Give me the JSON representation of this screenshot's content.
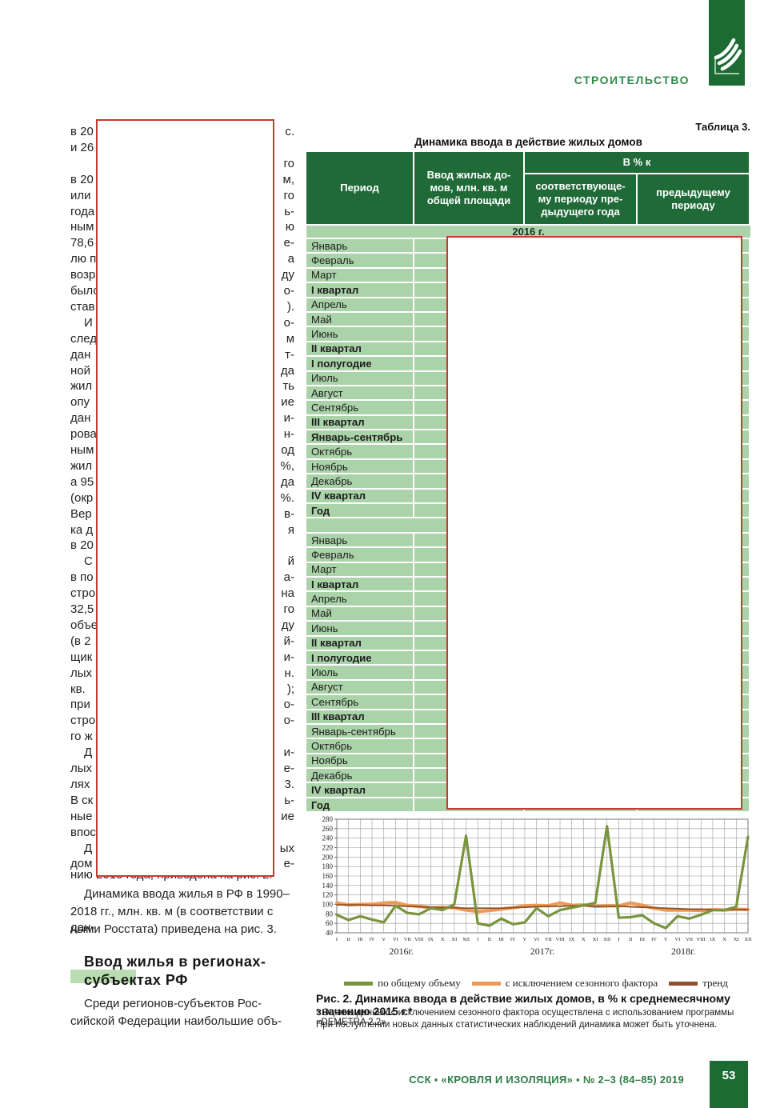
{
  "header": {
    "section_label": "СТРОИТЕЛЬСТВО",
    "logo_icon": "leaf-fan-logo",
    "brand_green": "#1b6b33"
  },
  "left_column": {
    "fragments": [
      {
        "l": "в 20",
        "r": "с.",
        "indent": false
      },
      {
        "l": "и 26",
        "r": "",
        "indent": false
      },
      {
        "l": "",
        "r": "го",
        "indent": true
      },
      {
        "l": "в 20",
        "r": "м,",
        "indent": false
      },
      {
        "l": "или",
        "r": "го",
        "indent": false
      },
      {
        "l": "года",
        "r": "ь-",
        "indent": false
      },
      {
        "l": "ным",
        "r": "ю",
        "indent": false
      },
      {
        "l": "78,6",
        "r": "е-",
        "indent": false
      },
      {
        "l": "лю п",
        "r": "а",
        "indent": false
      },
      {
        "l": "возр",
        "r": "ду",
        "indent": false
      },
      {
        "l": "было",
        "r": "о-",
        "indent": false
      },
      {
        "l": "став",
        "r": ").",
        "indent": false
      },
      {
        "l": "И",
        "r": "о-",
        "indent": true
      },
      {
        "l": "след",
        "r": "м",
        "indent": false
      },
      {
        "l": "дан",
        "r": "т-",
        "indent": false
      },
      {
        "l": "ной",
        "r": "да",
        "indent": false
      },
      {
        "l": "жил",
        "r": "ть",
        "indent": false
      },
      {
        "l": "опу",
        "r": "ие",
        "indent": false
      },
      {
        "l": "дан",
        "r": "и-",
        "indent": false
      },
      {
        "l": "рова",
        "r": "н-",
        "indent": false
      },
      {
        "l": "ным",
        "r": "од",
        "indent": false
      },
      {
        "l": "жил",
        "r": "%,",
        "indent": false
      },
      {
        "l": "а 95",
        "r": "да",
        "indent": false
      },
      {
        "l": "(окр",
        "r": "%.",
        "indent": false
      },
      {
        "l": "Вер",
        "r": "в-",
        "indent": false
      },
      {
        "l": "ка д",
        "r": "я",
        "indent": false
      },
      {
        "l": "в 20",
        "r": "",
        "indent": false
      },
      {
        "l": "С",
        "r": "й",
        "indent": true
      },
      {
        "l": "в по",
        "r": "а-",
        "indent": false
      },
      {
        "l": "стро",
        "r": "на",
        "indent": false
      },
      {
        "l": "32,5",
        "r": "го",
        "indent": false
      },
      {
        "l": "объе",
        "r": "ду",
        "indent": false
      },
      {
        "l": "(в 2",
        "r": "й-",
        "indent": false
      },
      {
        "l": "щик",
        "r": "и-",
        "indent": false
      },
      {
        "l": "лых",
        "r": "н.",
        "indent": false
      },
      {
        "l": "кв.",
        "r": ");",
        "indent": false
      },
      {
        "l": "при",
        "r": "о-",
        "indent": false
      },
      {
        "l": "стро",
        "r": "о-",
        "indent": false
      },
      {
        "l": "го ж",
        "r": "",
        "indent": false
      },
      {
        "l": "Д",
        "r": "и-",
        "indent": true
      },
      {
        "l": "лых",
        "r": "е-",
        "indent": false
      },
      {
        "l": "лях",
        "r": "3.",
        "indent": false
      },
      {
        "l": "В ск",
        "r": "ь-",
        "indent": false
      },
      {
        "l": "ные",
        "r": "ие",
        "indent": false
      },
      {
        "l": "впос",
        "r": "",
        "indent": false
      },
      {
        "l": "Д",
        "r": "ых",
        "indent": true
      },
      {
        "l": "дом",
        "r": "е-",
        "indent": false
      }
    ],
    "crossed_line": "нию 2015 года, приведена на рис. 2.",
    "paragraph_dynamics": [
      "Динамика ввода жилья в РФ в 1990–",
      "2018 гг., млн. кв. м (в соответствии с дан-",
      "ными Росстата) приведена на рис. 3."
    ],
    "heading_line1": "Ввод жилья в регионах-",
    "heading_line2": "субъектах РФ",
    "paragraph_regions": [
      "Среди регионов-субъектов Рос-",
      "сийской Федерации наибольшие объ-"
    ]
  },
  "table": {
    "label": "Таблица 3.",
    "title": "Динамика ввода в действие жилых домов",
    "col_period": "Период",
    "col_input": "Ввод жилых до-\nмов, млн. кв. м\nобщей площади",
    "col_group": "В % к",
    "col_prev_year": "соответствующе-\nму периоду пре-\nдыдущего года",
    "col_prev_period": "предыдущему\nпериоду",
    "section1_year": "2016 г.",
    "rows1": [
      {
        "label": "Январь",
        "bold": false
      },
      {
        "label": "Февраль",
        "bold": false
      },
      {
        "label": "Март",
        "bold": false
      },
      {
        "label": "I квартал",
        "bold": true
      },
      {
        "label": "Апрель",
        "bold": false
      },
      {
        "label": "Май",
        "bold": false
      },
      {
        "label": "Июнь",
        "bold": false
      },
      {
        "label": "II квартал",
        "bold": true
      },
      {
        "label": "I полугодие",
        "bold": true
      },
      {
        "label": "Июль",
        "bold": false
      },
      {
        "label": "Август",
        "bold": false
      },
      {
        "label": "Сентябрь",
        "bold": false
      },
      {
        "label": "III квартал",
        "bold": true
      },
      {
        "label": "Январь-сентябрь",
        "bold": true
      },
      {
        "label": "Октябрь",
        "bold": false
      },
      {
        "label": "Ноябрь",
        "bold": false
      },
      {
        "label": "Декабрь",
        "bold": false
      },
      {
        "label": "IV квартал",
        "bold": true
      },
      {
        "label": "Год",
        "bold": true
      }
    ],
    "rows2": [
      {
        "label": "Январь",
        "bold": false
      },
      {
        "label": "Февраль",
        "bold": false
      },
      {
        "label": "Март",
        "bold": false
      },
      {
        "label": "I квартал",
        "bold": true
      },
      {
        "label": "Апрель",
        "bold": false
      },
      {
        "label": "Май",
        "bold": false
      },
      {
        "label": "Июнь",
        "bold": false
      },
      {
        "label": "II квартал",
        "bold": true
      },
      {
        "label": "I полугодие",
        "bold": true
      },
      {
        "label": "Июль",
        "bold": false
      },
      {
        "label": "Август",
        "bold": false
      },
      {
        "label": "Сентябрь",
        "bold": false
      },
      {
        "label": "III квартал",
        "bold": true
      },
      {
        "label": "Январь-сентябрь",
        "bold": false
      },
      {
        "label": "Октябрь",
        "bold": false
      },
      {
        "label": "Ноябрь",
        "bold": false
      },
      {
        "label": "Декабрь",
        "bold": false
      },
      {
        "label": "IV квартал",
        "bold": true
      },
      {
        "label": "Год",
        "bold": true
      }
    ],
    "cell_green": "#abd3a9",
    "header_green": "#206a38"
  },
  "chart_data": {
    "type": "line",
    "x_months": [
      "I",
      "II",
      "III",
      "IV",
      "V",
      "VI",
      "VII",
      "VIII",
      "IX",
      "X",
      "XI",
      "XII"
    ],
    "year_groups": [
      "2016г.",
      "2017г.",
      "2018г."
    ],
    "ylim": [
      40,
      280
    ],
    "ytick_step": 20,
    "grid": true,
    "legend_position": "bottom",
    "series": [
      {
        "name": "по общему объему",
        "color": "#78953e",
        "values": [
          78,
          67,
          75,
          68,
          62,
          97,
          82,
          79,
          92,
          88,
          100,
          245,
          60,
          55,
          70,
          58,
          62,
          92,
          75,
          88,
          93,
          98,
          103,
          265,
          72,
          73,
          77,
          60,
          50,
          75,
          70,
          78,
          88,
          88,
          95,
          243
        ]
      },
      {
        "name": "с исключением сезонного фактора",
        "color": "#ee9a54",
        "values": [
          103,
          99,
          100,
          100,
          103,
          104,
          98,
          96,
          93,
          94,
          93,
          88,
          85,
          87,
          90,
          93,
          97,
          98,
          97,
          103,
          98,
          99,
          96,
          97,
          97,
          103,
          98,
          92,
          88,
          88,
          88,
          87,
          89,
          88,
          90,
          89
        ]
      },
      {
        "name": "тренд",
        "color": "#8c4f28",
        "values": [
          99,
          99,
          99,
          98,
          98,
          97,
          96,
          95,
          94,
          93,
          93,
          92,
          92,
          92,
          92,
          93,
          94,
          95,
          96,
          96,
          97,
          97,
          96,
          96,
          96,
          95,
          94,
          93,
          92,
          91,
          90,
          90,
          89,
          89,
          89,
          89
        ]
      }
    ]
  },
  "figure": {
    "caption": "Рис. 2. Динамика ввода в действие жилых домов, в % к среднемесячному значению 2015 г.*",
    "footnote1": "* Оценка данных с исключением сезонного фактора осуществлена с использованием программы «DEMETRA 2.2»",
    "footnote2": "При поступлении новых данных статистических наблюдений динамика может быть уточнена."
  },
  "footer": {
    "text": "ССК ▪ «КРОВЛЯ И ИЗОЛЯЦИЯ» ▪ № 2–3 (84–85) 2019",
    "page_number": "53"
  },
  "annotation": {
    "redaction_border_color": "#c53b31"
  }
}
